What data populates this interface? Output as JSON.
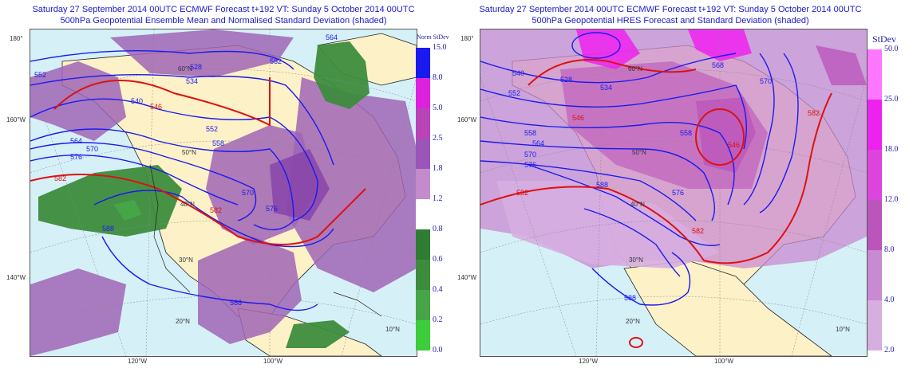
{
  "left": {
    "title_line1": "Saturday 27 September 2014 00UTC ECMWF Forecast t+192  VT: Sunday 5 October 2014 00UTC",
    "title_line2": "500hPa Geopotential Ensemble Mean and Normalised Standard Deviation (shaded)",
    "legend_title": "Norm StDev",
    "legend": [
      {
        "label": "15.0",
        "color": "#1a1aee"
      },
      {
        "label": "8.0",
        "color": "#dd22dd"
      },
      {
        "label": "5.0",
        "color": "#b844b8"
      },
      {
        "label": "2.5",
        "color": "#9a55b8"
      },
      {
        "label": "1.8",
        "color": "#c28bcc"
      },
      {
        "label": "1.2",
        "color": "#ffffff"
      },
      {
        "label": "0.8",
        "color": "#2e7d32"
      },
      {
        "label": "0.6",
        "color": "#3d8c3d"
      },
      {
        "label": "0.4",
        "color": "#46a546"
      },
      {
        "label": "0.2",
        "color": "#3ccc3c"
      },
      {
        "label": "0.0",
        "color": "#22ee22"
      }
    ],
    "contour_labels_blue": [
      "528",
      "534",
      "540",
      "552",
      "552",
      "558",
      "564",
      "564",
      "570",
      "570",
      "576",
      "576",
      "582",
      "588",
      "588"
    ],
    "contour_labels_red": [
      "546",
      "582",
      "582"
    ],
    "edge_labels": [
      "180°",
      "160°W",
      "140°W",
      "120°W",
      "100°W"
    ],
    "lat_labels": [
      "60°N",
      "50°N",
      "40°N",
      "30°N",
      "20°N",
      "10°N"
    ]
  },
  "right": {
    "title_line1": "Saturday 27 September 2014 00UTC ECMWF Forecast t+192  VT: Sunday 5 October 2014 00UTC",
    "title_line2": "500hPa Geopotential HRES Forecast and Standard Deviation (shaded)",
    "legend_title": "StDev",
    "legend": [
      {
        "label": "50.0",
        "color": "#ff77ff"
      },
      {
        "label": "25.0",
        "color": "#ee22ee"
      },
      {
        "label": "18.0",
        "color": "#dd44dd"
      },
      {
        "label": "12.0",
        "color": "#bb55bb"
      },
      {
        "label": "8.0",
        "color": "#c88ad0"
      },
      {
        "label": "4.0",
        "color": "#d6aee0"
      },
      {
        "label": "2.0",
        "color": "#ffffff"
      }
    ],
    "contour_labels_blue": [
      "528",
      "534",
      "540",
      "552",
      "558",
      "558",
      "564",
      "568",
      "570",
      "570",
      "576",
      "576",
      "588",
      "588"
    ],
    "contour_labels_red": [
      "546",
      "546",
      "582",
      "582",
      "582"
    ],
    "edge_labels": [
      "180°",
      "160°W",
      "140°W",
      "120°W",
      "100°W"
    ],
    "lat_labels": [
      "60°N",
      "50°N",
      "40°N",
      "30°N",
      "20°N",
      "10°N"
    ]
  }
}
